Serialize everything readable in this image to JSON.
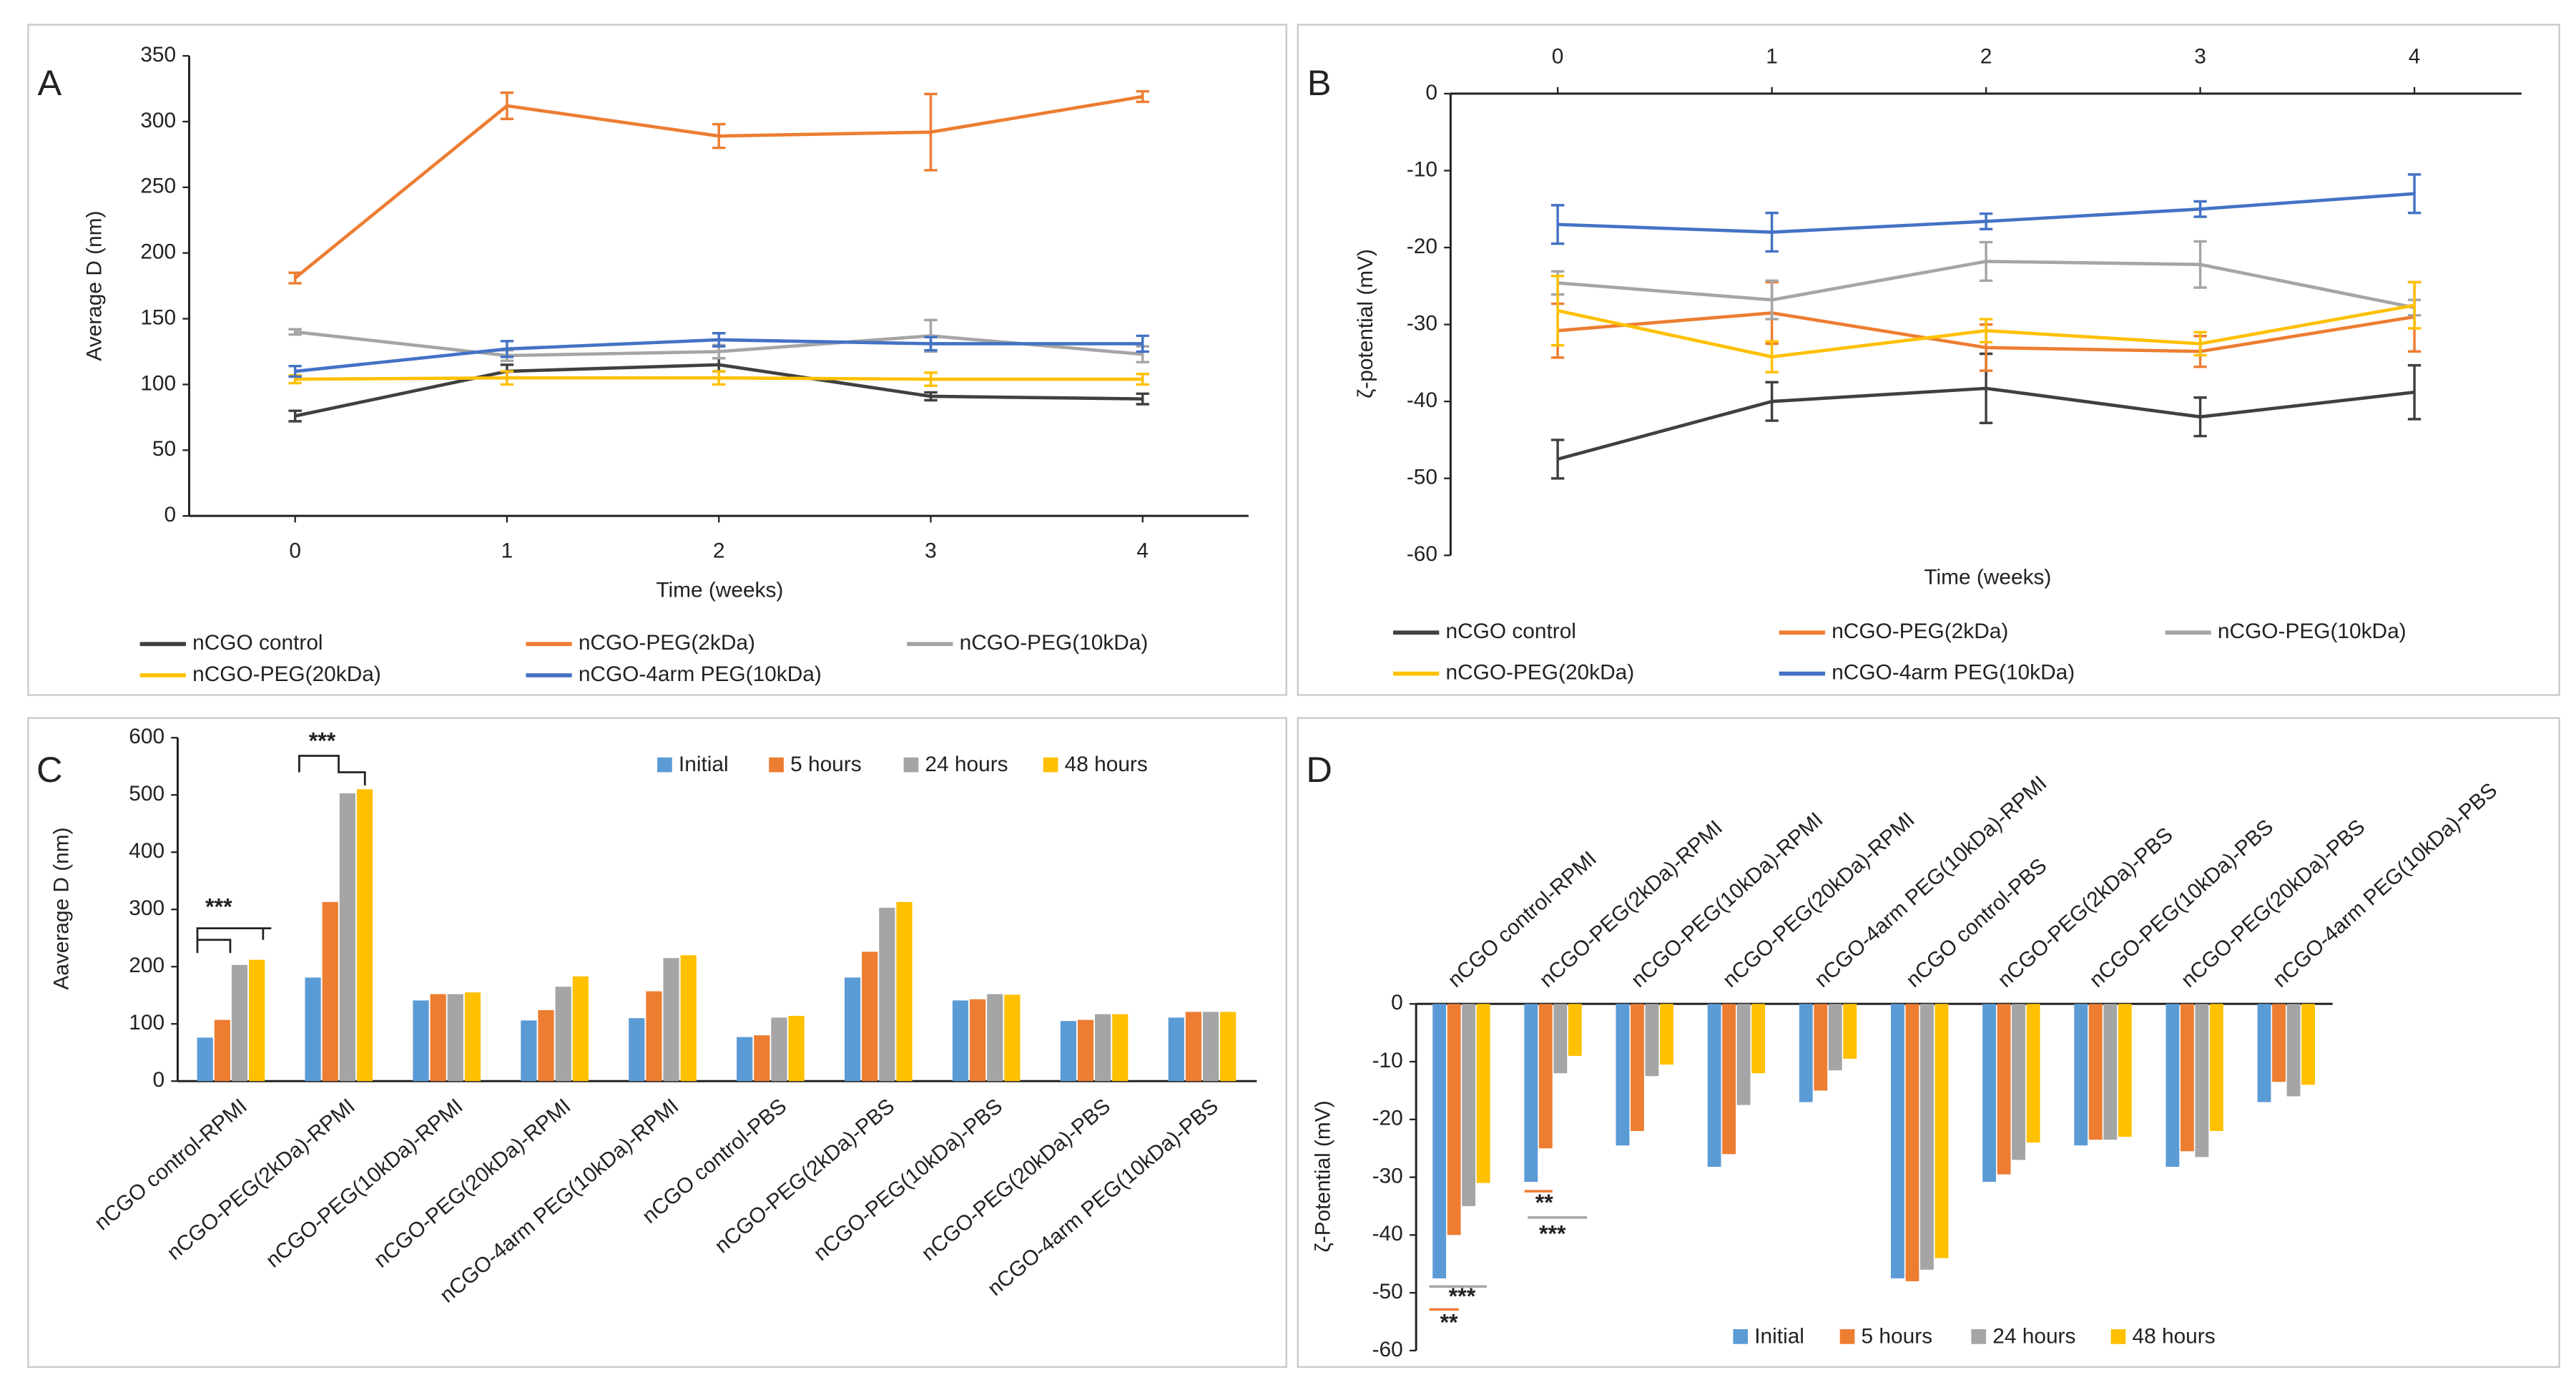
{
  "chart_data": [
    {
      "type": "line",
      "panel_label": "A",
      "xlabel": "Time (weeks)",
      "ylabel": "Average D (nm)",
      "x": [
        0,
        1,
        2,
        3,
        4
      ],
      "xlim": [
        -0.5,
        4.5
      ],
      "xticks": [
        0,
        1,
        2,
        3,
        4
      ],
      "x_axis_position": "bottom",
      "ylim": [
        0,
        350
      ],
      "yticks": [
        0,
        50,
        100,
        150,
        200,
        250,
        300,
        350
      ],
      "legend": "bottom",
      "series": [
        {
          "name": "nCGO control",
          "color": "#404040",
          "values": [
            76,
            110,
            115,
            91,
            89
          ],
          "errors": [
            4,
            5,
            5,
            3,
            4
          ]
        },
        {
          "name": "nCGO-PEG(2kDa)",
          "color": "#ED7D31",
          "values": [
            181,
            312,
            289,
            292,
            319
          ],
          "errors": [
            4,
            10,
            9,
            29,
            4
          ]
        },
        {
          "name": "nCGO-PEG(10kDa)",
          "color": "#A5A5A5",
          "values": [
            140,
            122,
            125,
            137,
            123
          ],
          "errors": [
            2,
            4,
            5,
            12,
            6
          ]
        },
        {
          "name": "nCGO-PEG(20kDa)",
          "color": "#FFC000",
          "values": [
            104,
            105,
            105,
            104,
            104
          ],
          "errors": [
            3,
            5,
            5,
            5,
            4
          ]
        },
        {
          "name": "nCGO-4arm PEG(10kDa)",
          "color": "#4472C4",
          "values": [
            110,
            127,
            134,
            131,
            131
          ],
          "errors": [
            4,
            6,
            5,
            5,
            6
          ]
        }
      ]
    },
    {
      "type": "line",
      "panel_label": "B",
      "xlabel": "Time (weeks)",
      "ylabel": "ζ-potential (mV)",
      "x": [
        0,
        1,
        2,
        3,
        4
      ],
      "xlim": [
        -0.5,
        4.5
      ],
      "xticks": [
        0,
        1,
        2,
        3,
        4
      ],
      "x_axis_position": "top",
      "ylim": [
        -60,
        0
      ],
      "yticks": [
        0,
        -10,
        -20,
        -30,
        -40,
        -50,
        -60
      ],
      "legend": "bottom",
      "series": [
        {
          "name": "nCGO control",
          "color": "#404040",
          "values": [
            -47.5,
            -40,
            -38.3,
            -42,
            -38.8
          ],
          "errors": [
            2.5,
            2.5,
            4.5,
            2.5,
            3.5
          ]
        },
        {
          "name": "nCGO-PEG(2kDa)",
          "color": "#ED7D31",
          "values": [
            -30.8,
            -28.5,
            -33,
            -33.5,
            -29
          ],
          "errors": [
            3.5,
            4,
            3,
            2,
            4.5
          ]
        },
        {
          "name": "nCGO-PEG(10kDa)",
          "color": "#A5A5A5",
          "values": [
            -24.6,
            -26.8,
            -21.8,
            -22.2,
            -27.8
          ],
          "errors": [
            1.5,
            2.5,
            2.5,
            3,
            1
          ]
        },
        {
          "name": "nCGO-PEG(20kDa)",
          "color": "#FFC000",
          "values": [
            -28.2,
            -34.2,
            -30.8,
            -32.5,
            -27.5
          ],
          "errors": [
            4.5,
            2,
            1.5,
            1.5,
            3
          ]
        },
        {
          "name": "nCGO-4arm PEG(10kDa)",
          "color": "#4472C4",
          "values": [
            -17,
            -18,
            -16.6,
            -15,
            -13
          ],
          "errors": [
            2.5,
            2.5,
            1,
            1,
            2.5
          ]
        }
      ]
    },
    {
      "type": "bar",
      "panel_label": "C",
      "ylabel": "Aaverage D (nm)",
      "label_position": "bottom",
      "categories": [
        "nCGO control-RPMI",
        "nCGO-PEG(2kDa)-RPMI",
        "nCGO-PEG(10kDa)-RPMI",
        "nCGO-PEG(20kDa)-RPMI",
        "nCGO-4arm PEG(10kDa)-RPMI",
        "nCGO control-PBS",
        "nCGO-PEG(2kDa)-PBS",
        "nCGO-PEG(10kDa)-PBS",
        "nCGO-PEG(20kDa)-PBS",
        "nCGO-4arm PEG(10kDa)-PBS"
      ],
      "ylim": [
        0,
        600
      ],
      "yticks": [
        0,
        100,
        200,
        300,
        400,
        500,
        600
      ],
      "legend": "top",
      "series": [
        {
          "name": "Initial",
          "color": "#5B9BD5",
          "values": [
            76,
            181,
            141,
            106,
            110,
            77,
            181,
            141,
            105,
            111
          ]
        },
        {
          "name": "5 hours",
          "color": "#ED7D31",
          "values": [
            107,
            313,
            152,
            124,
            157,
            80,
            226,
            143,
            107,
            121
          ]
        },
        {
          "name": "24 hours",
          "color": "#A5A5A5",
          "values": [
            203,
            503,
            152,
            165,
            215,
            111,
            303,
            152,
            117,
            121
          ]
        },
        {
          "name": "48 hours",
          "color": "#FFC000",
          "values": [
            212,
            510,
            155,
            183,
            220,
            114,
            313,
            151,
            117,
            121
          ]
        }
      ],
      "annotations": [
        {
          "text": "***"
        },
        {
          "text": "***"
        }
      ]
    },
    {
      "type": "bar",
      "panel_label": "D",
      "ylabel": "ζ-Potential (mV)",
      "label_position": "top",
      "categories": [
        "nCGO control-RPMI",
        "nCGO-PEG(2kDa)-RPMI",
        "nCGO-PEG(10kDa)-RPMI",
        "nCGO-PEG(20kDa)-RPMI",
        "nCGO-4arm PEG(10kDa)-RPMI",
        "nCGO control-PBS",
        "nCGO-PEG(2kDa)-PBS",
        "nCGO-PEG(10kDa)-PBS",
        "nCGO-PEG(20kDa)-PBS",
        "nCGO-4arm PEG(10kDa)-PBS"
      ],
      "ylim": [
        -60,
        0
      ],
      "yticks": [
        0,
        -10,
        -20,
        -30,
        -40,
        -50,
        -60
      ],
      "legend": "bottom",
      "series": [
        {
          "name": "Initial",
          "color": "#5B9BD5",
          "values": [
            -47.5,
            -30.8,
            -24.5,
            -28.2,
            -17,
            -47.5,
            -30.8,
            -24.5,
            -28.2,
            -17
          ]
        },
        {
          "name": "5 hours",
          "color": "#ED7D31",
          "values": [
            -40,
            -25,
            -22,
            -26,
            -15,
            -48,
            -29.5,
            -23.5,
            -25.5,
            -13.5
          ]
        },
        {
          "name": "24 hours",
          "color": "#A5A5A5",
          "values": [
            -35,
            -12,
            -12.5,
            -17.5,
            -11.5,
            -46,
            -27,
            -23.5,
            -26.5,
            -16
          ]
        },
        {
          "name": "48 hours",
          "color": "#FFC000",
          "values": [
            -31,
            -9,
            -10.5,
            -12,
            -9.5,
            -44,
            -24,
            -23,
            -22,
            -14
          ]
        }
      ],
      "annotations": [
        {
          "text": "***"
        },
        {
          "text": "**"
        },
        {
          "text": "**"
        },
        {
          "text": "***"
        }
      ]
    }
  ]
}
